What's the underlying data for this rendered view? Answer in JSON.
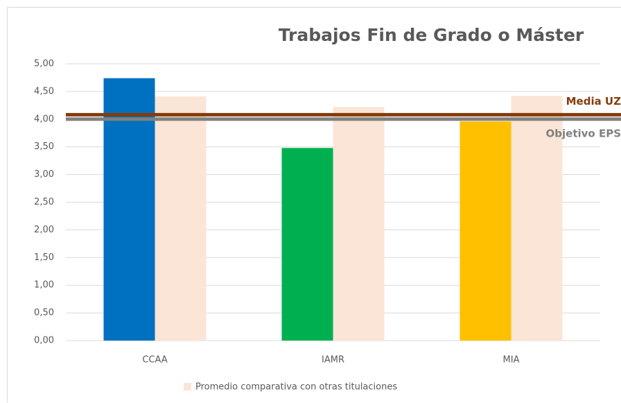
{
  "chart_data": {
    "type": "bar",
    "title": "Trabajos Fin de Grado o Máster",
    "categories": [
      "CCAA",
      "IAMR",
      "MIA"
    ],
    "series": [
      {
        "colors": [
          "#0070c0",
          "#00b050",
          "#ffc000"
        ],
        "values": [
          4.74,
          3.48,
          3.96
        ]
      },
      {
        "name": "Promedio comparativa con otras titulaciones",
        "color": "#fbe5d6",
        "values": [
          4.41,
          4.22,
          4.42
        ]
      }
    ],
    "reference_lines": [
      {
        "label": "Media UZ",
        "value": 4.08,
        "color": "#843c0c"
      },
      {
        "label": "Objetivo EPS",
        "value": 4.0,
        "color": "#808080"
      }
    ],
    "ylim": [
      0,
      5
    ],
    "yticks": [
      {
        "value": 0,
        "label": "0,00"
      },
      {
        "value": 0.5,
        "label": "0,50"
      },
      {
        "value": 1,
        "label": "1,00"
      },
      {
        "value": 1.5,
        "label": "1,50"
      },
      {
        "value": 2,
        "label": "2,00"
      },
      {
        "value": 2.5,
        "label": "2,50"
      },
      {
        "value": 3,
        "label": "3,00"
      },
      {
        "value": 3.5,
        "label": "3,50"
      },
      {
        "value": 4,
        "label": "4,00"
      },
      {
        "value": 4.5,
        "label": "4,50"
      },
      {
        "value": 5,
        "label": "5,00"
      }
    ],
    "grid": true
  }
}
